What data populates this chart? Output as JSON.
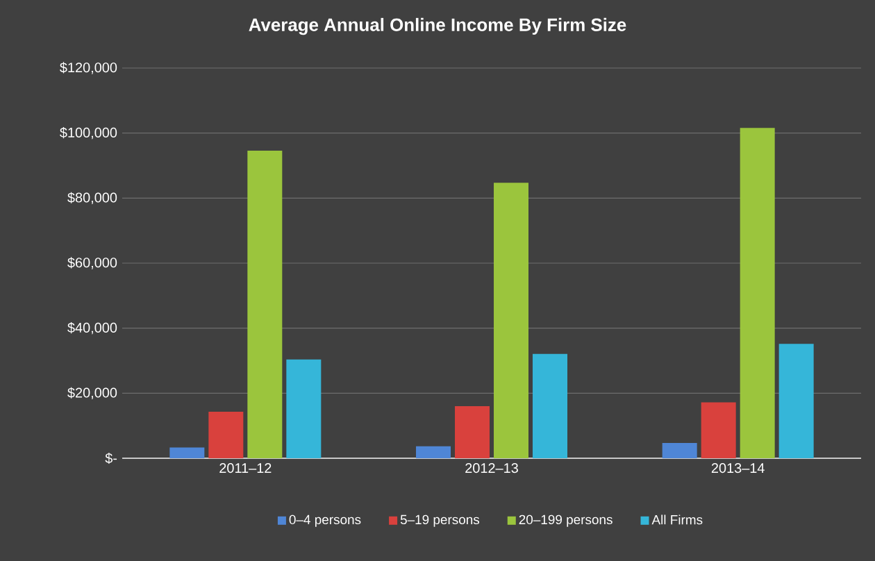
{
  "chart_data": {
    "type": "bar",
    "title": "Average Annual Online Income By Firm Size",
    "categories": [
      "2011–12",
      "2012–13",
      "2013–14"
    ],
    "series": [
      {
        "name": "0–4 persons",
        "color": "#4f86d6",
        "values": [
          3300,
          3700,
          4700
        ]
      },
      {
        "name": "5–19 persons",
        "color": "#d9413d",
        "values": [
          14300,
          16000,
          17200
        ]
      },
      {
        "name": "20–199 persons",
        "color": "#9bc53d",
        "values": [
          94600,
          84700,
          101600
        ]
      },
      {
        "name": "All Firms",
        "color": "#35b6d9",
        "values": [
          30400,
          32100,
          35200
        ]
      }
    ],
    "ylim": [
      0,
      120000
    ],
    "yticks": [
      {
        "value": 0,
        "label": "$-"
      },
      {
        "value": 20000,
        "label": "$20,000"
      },
      {
        "value": 40000,
        "label": "$40,000"
      },
      {
        "value": 60000,
        "label": "$60,000"
      },
      {
        "value": 80000,
        "label": "$80,000"
      },
      {
        "value": 100000,
        "label": "$100,000"
      },
      {
        "value": 120000,
        "label": "$120,000"
      }
    ],
    "grid": "y",
    "legend": "bottom"
  }
}
